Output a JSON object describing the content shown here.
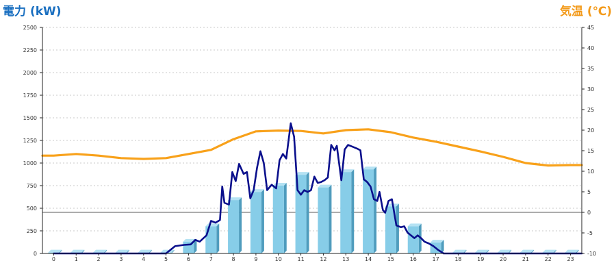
{
  "chart_data": {
    "type": "bar+line",
    "ylabel_left": "電力 (kW)",
    "ylabel_right": "気温 (℃)",
    "x_ticks": [
      "0",
      "1",
      "2",
      "3",
      "4",
      "5",
      "6",
      "7",
      "8",
      "9",
      "10",
      "11",
      "12",
      "13",
      "14",
      "15",
      "16",
      "17",
      "18",
      "19",
      "20",
      "21",
      "22",
      "23"
    ],
    "y_left_ticks": [
      "0",
      "250",
      "500",
      "750",
      "1000",
      "1250",
      "1500",
      "1750",
      "2000",
      "2250",
      "2500"
    ],
    "y_right_ticks": [
      "-10",
      "-5",
      "0",
      "5",
      "10",
      "15",
      "20",
      "25",
      "30",
      "35",
      "40",
      "45"
    ],
    "y_left_range": [
      0,
      2500
    ],
    "y_right_range": [
      -10,
      45
    ],
    "grid": true,
    "colors": {
      "bars": "#87cde8",
      "bar_side": "#4f9cbd",
      "bar_top": "#b5e2f3",
      "power_line": "#0a0f8c",
      "temperature_line": "#f8a11a",
      "grid": "#c8c8c8"
    },
    "series": [
      {
        "kind": "bar",
        "axis": "left",
        "values": [
          10,
          10,
          10,
          10,
          10,
          10,
          130,
          300,
          590,
          680,
          750,
          870,
          730,
          900,
          930,
          520,
          300,
          120,
          10,
          10,
          10,
          10,
          10,
          10
        ]
      },
      {
        "kind": "line",
        "axis": "left",
        "points": [
          [
            0,
            0
          ],
          [
            5,
            0
          ],
          [
            5.4,
            80
          ],
          [
            5.8,
            95
          ],
          [
            6.1,
            100
          ],
          [
            6.3,
            150
          ],
          [
            6.5,
            130
          ],
          [
            6.8,
            200
          ],
          [
            7,
            360
          ],
          [
            7.2,
            340
          ],
          [
            7.4,
            370
          ],
          [
            7.5,
            740
          ],
          [
            7.6,
            560
          ],
          [
            7.8,
            540
          ],
          [
            7.95,
            900
          ],
          [
            8.1,
            800
          ],
          [
            8.25,
            990
          ],
          [
            8.45,
            880
          ],
          [
            8.6,
            900
          ],
          [
            8.75,
            610
          ],
          [
            8.9,
            700
          ],
          [
            9.05,
            950
          ],
          [
            9.2,
            1130
          ],
          [
            9.35,
            1000
          ],
          [
            9.5,
            700
          ],
          [
            9.7,
            760
          ],
          [
            9.9,
            720
          ],
          [
            10.05,
            1030
          ],
          [
            10.2,
            1100
          ],
          [
            10.35,
            1050
          ],
          [
            10.55,
            1440
          ],
          [
            10.7,
            1290
          ],
          [
            10.85,
            700
          ],
          [
            11,
            650
          ],
          [
            11.15,
            700
          ],
          [
            11.3,
            680
          ],
          [
            11.45,
            700
          ],
          [
            11.6,
            850
          ],
          [
            11.75,
            780
          ],
          [
            11.9,
            790
          ],
          [
            12.05,
            810
          ],
          [
            12.2,
            840
          ],
          [
            12.35,
            1200
          ],
          [
            12.5,
            1140
          ],
          [
            12.6,
            1190
          ],
          [
            12.8,
            810
          ],
          [
            12.95,
            1150
          ],
          [
            13.1,
            1200
          ],
          [
            13.3,
            1180
          ],
          [
            13.5,
            1160
          ],
          [
            13.65,
            1140
          ],
          [
            13.8,
            820
          ],
          [
            13.95,
            790
          ],
          [
            14.1,
            740
          ],
          [
            14.25,
            600
          ],
          [
            14.4,
            580
          ],
          [
            14.5,
            680
          ],
          [
            14.65,
            480
          ],
          [
            14.75,
            450
          ],
          [
            14.9,
            580
          ],
          [
            15.05,
            600
          ],
          [
            15.25,
            310
          ],
          [
            15.45,
            290
          ],
          [
            15.6,
            300
          ],
          [
            15.75,
            230
          ],
          [
            15.9,
            200
          ],
          [
            16.05,
            170
          ],
          [
            16.2,
            200
          ],
          [
            16.35,
            170
          ],
          [
            16.5,
            130
          ],
          [
            16.7,
            110
          ],
          [
            16.9,
            80
          ],
          [
            17.1,
            40
          ],
          [
            17.35,
            0
          ],
          [
            23.5,
            0
          ]
        ]
      },
      {
        "kind": "line",
        "axis": "right",
        "points": [
          [
            -0.5,
            13.8
          ],
          [
            0,
            13.8
          ],
          [
            1,
            14.2
          ],
          [
            2,
            13.8
          ],
          [
            3,
            13.2
          ],
          [
            4,
            13
          ],
          [
            5,
            13.2
          ],
          [
            6,
            14.2
          ],
          [
            7,
            15.2
          ],
          [
            8,
            17.8
          ],
          [
            9,
            19.7
          ],
          [
            10,
            19.9
          ],
          [
            11,
            19.8
          ],
          [
            12,
            19.2
          ],
          [
            13,
            20
          ],
          [
            14,
            20.2
          ],
          [
            15,
            19.5
          ],
          [
            16,
            18.2
          ],
          [
            17,
            17.2
          ],
          [
            18,
            16
          ],
          [
            19,
            14.8
          ],
          [
            20,
            13.5
          ],
          [
            21,
            12
          ],
          [
            22,
            11.4
          ],
          [
            23,
            11.5
          ],
          [
            23.5,
            11.5
          ]
        ]
      }
    ]
  }
}
